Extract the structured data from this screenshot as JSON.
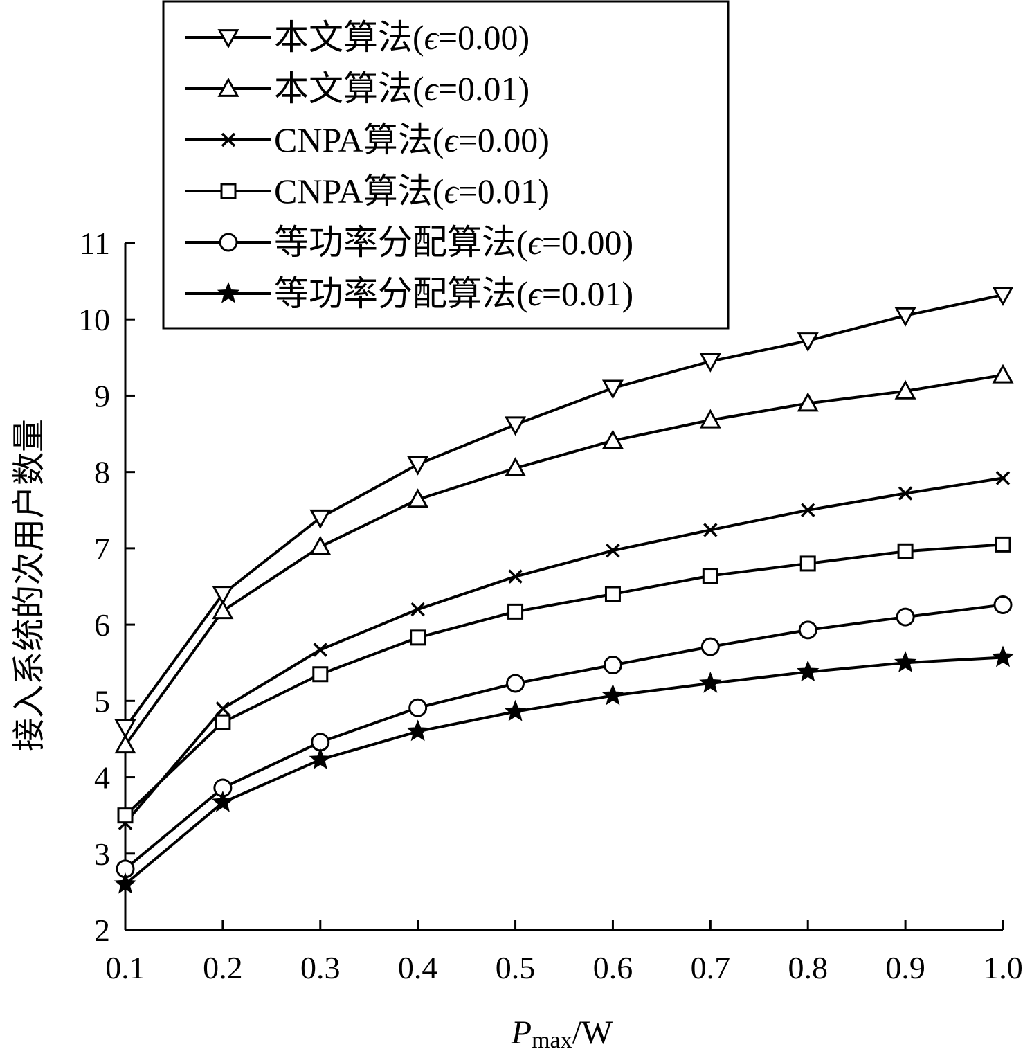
{
  "chart_data": {
    "type": "line",
    "x": [
      0.1,
      0.2,
      0.3,
      0.4,
      0.5,
      0.6,
      0.7,
      0.8,
      0.9,
      1.0
    ],
    "x_tick_labels": [
      "0.1",
      "0.2",
      "0.3",
      "0.4",
      "0.5",
      "0.6",
      "0.7",
      "0.8",
      "0.9",
      "1.0"
    ],
    "y_ticks": [
      2,
      3,
      4,
      5,
      6,
      7,
      8,
      9,
      10,
      11
    ],
    "xlim": [
      0.1,
      1.0
    ],
    "ylim": [
      2,
      11
    ],
    "xlabel": {
      "main": "P",
      "sub": "max",
      "unit": "/W"
    },
    "ylabel": "接入系统的次用户数量",
    "grid": false,
    "legend": {
      "position": "top-left"
    },
    "series": [
      {
        "name": "本文算法(",
        "eps_symbol": "ϵ",
        "eps_value": "=0.00)",
        "marker": "triangle-down",
        "values": [
          4.65,
          6.4,
          7.4,
          8.1,
          8.62,
          9.1,
          9.45,
          9.72,
          10.05,
          10.32
        ]
      },
      {
        "name": "本文算法(",
        "eps_symbol": "ϵ",
        "eps_value": "=0.01)",
        "marker": "triangle-up",
        "values": [
          4.42,
          6.18,
          7.02,
          7.64,
          8.05,
          8.41,
          8.68,
          8.9,
          9.06,
          9.27
        ]
      },
      {
        "name": "CNPA算法(",
        "eps_symbol": "ϵ",
        "eps_value": "=0.00)",
        "marker": "x",
        "values": [
          3.4,
          4.9,
          5.67,
          6.2,
          6.63,
          6.97,
          7.24,
          7.5,
          7.72,
          7.92
        ]
      },
      {
        "name": "CNPA算法(",
        "eps_symbol": "ϵ",
        "eps_value": "=0.01)",
        "marker": "square",
        "values": [
          3.5,
          4.72,
          5.35,
          5.83,
          6.17,
          6.4,
          6.64,
          6.8,
          6.96,
          7.05
        ]
      },
      {
        "name": "等功率分配算法(",
        "eps_symbol": "ϵ",
        "eps_value": "=0.00)",
        "marker": "circle",
        "values": [
          2.8,
          3.86,
          4.46,
          4.91,
          5.23,
          5.47,
          5.71,
          5.93,
          6.1,
          6.26
        ]
      },
      {
        "name": "等功率分配算法(",
        "eps_symbol": "ϵ",
        "eps_value": "=0.01)",
        "marker": "star",
        "values": [
          2.6,
          3.67,
          4.23,
          4.6,
          4.86,
          5.07,
          5.23,
          5.38,
          5.5,
          5.57
        ]
      }
    ]
  }
}
